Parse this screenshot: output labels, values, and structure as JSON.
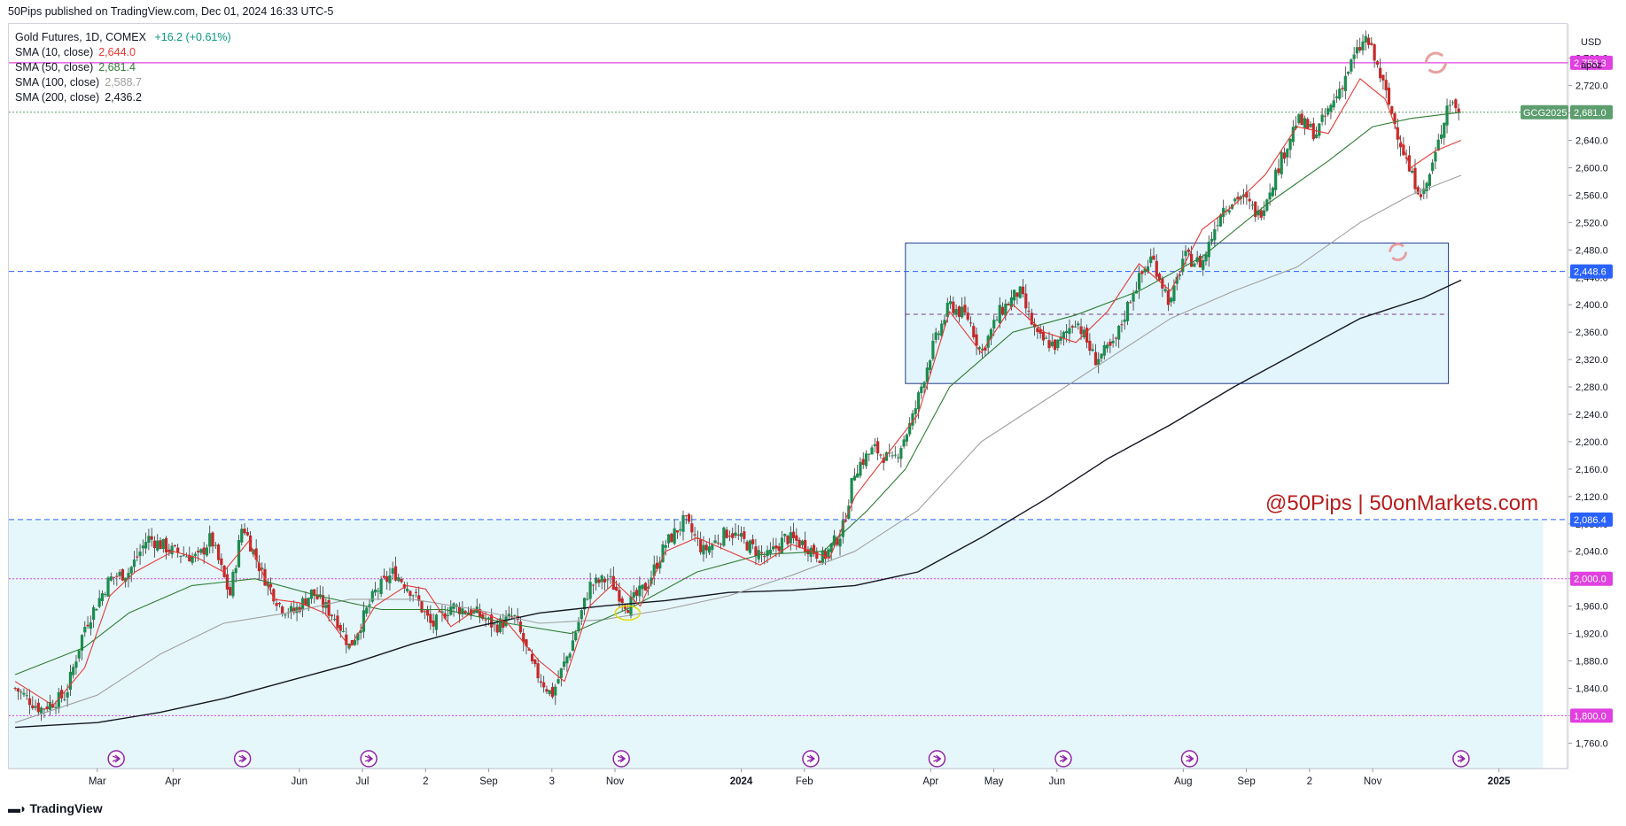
{
  "header": {
    "published": "50Pips published on TradingView.com, Dec 01, 2024 16:33 UTC-5"
  },
  "legend": {
    "symbol": "Gold Futures, 1D, COMEX",
    "change": "+16.2 (+0.61%)",
    "indicators": [
      {
        "name": "SMA (10, close)",
        "value": "2,644.0",
        "color": "#e53935"
      },
      {
        "name": "SMA (50, close)",
        "value": "2,681.4",
        "color": "#2e7d32"
      },
      {
        "name": "SMA (100, close)",
        "value": "2,588.7",
        "color": "#9e9e9e"
      },
      {
        "name": "SMA (200, close)",
        "value": "2,436.2",
        "color": "#131722"
      }
    ]
  },
  "price_axis": {
    "currency": "USD",
    "mode": "apoz"
  },
  "watermark": "@50Pips | 50onMarkets.com",
  "footer": {
    "brand": "TradingView",
    "logo_icon": "tradingview-logo-icon"
  },
  "chart_data": {
    "type": "candlestick",
    "y_ticks": [
      1760,
      1800,
      1840,
      1880,
      1920,
      1960,
      2000,
      2040,
      2080,
      2120,
      2160,
      2200,
      2240,
      2280,
      2320,
      2360,
      2400,
      2440,
      2480,
      2520,
      2560,
      2600,
      2640,
      2680,
      2720,
      2760
    ],
    "y_tick_labels": [
      "1,760.0",
      "1,800.0",
      "1,840.0",
      "1,880.0",
      "1,920.0",
      "1,960.0",
      "2,000.0",
      "2,040.0",
      "2,080.0",
      "2,120.0",
      "2,160.0",
      "2,200.0",
      "2,240.0",
      "2,280.0",
      "2,320.0",
      "2,360.0",
      "2,400.0",
      "2,440.0",
      "2,480.0",
      "2,520.0",
      "2,560.0",
      "2,600.0",
      "2,640.0",
      "2,680.0",
      "2,720.0",
      "2,760.0"
    ],
    "ylim": [
      1723,
      2810
    ],
    "x_ticks": [
      {
        "label": "Mar",
        "t": 1.0
      },
      {
        "label": "Apr",
        "t": 2.2
      },
      {
        "label": "Jun",
        "t": 4.2
      },
      {
        "label": "Jul",
        "t": 5.2
      },
      {
        "label": "2",
        "t": 6.2
      },
      {
        "label": "Sep",
        "t": 7.2
      },
      {
        "label": "3",
        "t": 8.2
      },
      {
        "label": "Nov",
        "t": 9.2
      },
      {
        "label": "2024",
        "t": 11.2
      },
      {
        "label": "Feb",
        "t": 12.2
      },
      {
        "label": "Apr",
        "t": 14.2
      },
      {
        "label": "May",
        "t": 15.2
      },
      {
        "label": "Jun",
        "t": 16.2
      },
      {
        "label": "Aug",
        "t": 18.2
      },
      {
        "label": "Sep",
        "t": 19.2
      },
      {
        "label": "2",
        "t": 20.2
      },
      {
        "label": "Nov",
        "t": 21.2
      },
      {
        "label": "2025",
        "t": 23.2
      }
    ],
    "price_tags": [
      {
        "label": "2,753.3",
        "value": 2753.3,
        "color": "#e040e0",
        "line": "solid"
      },
      {
        "label": "2,681.0",
        "value": 2681.0,
        "color": "#5d9e6f",
        "line": "dotted",
        "symbol": "GCG2025"
      },
      {
        "label": "2,448.6",
        "value": 2448.6,
        "color": "#2962ff",
        "line": "dashed"
      },
      {
        "label": "2,086.4",
        "value": 2086.4,
        "color": "#2962ff",
        "line": "dashed"
      },
      {
        "label": "2,000.0",
        "value": 2000.0,
        "color": "#e040e0",
        "line": "dotted"
      },
      {
        "label": "1,800.0",
        "value": 1800.0,
        "color": "#e040e0",
        "line": "dotted"
      }
    ],
    "zones": [
      {
        "from_t": -0.4,
        "to_t": 23.9,
        "low": 1723,
        "high": 2086.4
      },
      {
        "from_t": 13.8,
        "to_t": 22.4,
        "low": 2285,
        "high": 2490,
        "mid": 2386,
        "top_dash": 2448.6
      }
    ],
    "sma10": [
      [
        -0.3,
        1850
      ],
      [
        0.3,
        1815
      ],
      [
        0.8,
        1870
      ],
      [
        1.2,
        1975
      ],
      [
        1.6,
        2010
      ],
      [
        2.2,
        2040
      ],
      [
        2.6,
        2030
      ],
      [
        3.0,
        2010
      ],
      [
        3.4,
        2055
      ],
      [
        3.8,
        1970
      ],
      [
        4.2,
        1965
      ],
      [
        4.6,
        1950
      ],
      [
        5.0,
        1900
      ],
      [
        5.4,
        1960
      ],
      [
        5.9,
        1990
      ],
      [
        6.2,
        1985
      ],
      [
        6.6,
        1930
      ],
      [
        7.0,
        1955
      ],
      [
        7.5,
        1935
      ],
      [
        8.0,
        1880
      ],
      [
        8.4,
        1850
      ],
      [
        8.8,
        1960
      ],
      [
        9.2,
        1995
      ],
      [
        9.6,
        1960
      ],
      [
        10.0,
        2040
      ],
      [
        10.5,
        2060
      ],
      [
        11.0,
        2040
      ],
      [
        11.5,
        2020
      ],
      [
        12.0,
        2050
      ],
      [
        12.6,
        2030
      ],
      [
        13.0,
        2120
      ],
      [
        13.5,
        2180
      ],
      [
        14.0,
        2240
      ],
      [
        14.5,
        2390
      ],
      [
        15.0,
        2330
      ],
      [
        15.5,
        2400
      ],
      [
        16.0,
        2360
      ],
      [
        16.5,
        2345
      ],
      [
        17.0,
        2390
      ],
      [
        17.5,
        2460
      ],
      [
        18.0,
        2420
      ],
      [
        18.5,
        2510
      ],
      [
        19.0,
        2545
      ],
      [
        19.5,
        2590
      ],
      [
        20.0,
        2660
      ],
      [
        20.5,
        2650
      ],
      [
        21.0,
        2730
      ],
      [
        21.4,
        2700
      ],
      [
        21.8,
        2600
      ],
      [
        22.2,
        2625
      ],
      [
        22.6,
        2640
      ]
    ],
    "sma50": [
      [
        -0.3,
        1860
      ],
      [
        0.8,
        1900
      ],
      [
        1.5,
        1950
      ],
      [
        2.5,
        1990
      ],
      [
        3.5,
        2000
      ],
      [
        4.5,
        1975
      ],
      [
        5.5,
        1955
      ],
      [
        6.5,
        1955
      ],
      [
        7.5,
        1935
      ],
      [
        8.5,
        1920
      ],
      [
        9.5,
        1960
      ],
      [
        10.5,
        2010
      ],
      [
        11.5,
        2035
      ],
      [
        12.5,
        2040
      ],
      [
        13.2,
        2100
      ],
      [
        13.8,
        2160
      ],
      [
        14.5,
        2280
      ],
      [
        15.5,
        2360
      ],
      [
        16.5,
        2385
      ],
      [
        17.5,
        2420
      ],
      [
        18.5,
        2470
      ],
      [
        19.5,
        2545
      ],
      [
        20.5,
        2610
      ],
      [
        21.2,
        2660
      ],
      [
        21.8,
        2672
      ],
      [
        22.6,
        2681
      ]
    ],
    "sma100": [
      [
        -0.3,
        1790
      ],
      [
        1.0,
        1830
      ],
      [
        2.0,
        1890
      ],
      [
        3.0,
        1935
      ],
      [
        4.0,
        1950
      ],
      [
        5.0,
        1970
      ],
      [
        6.0,
        1970
      ],
      [
        7.0,
        1955
      ],
      [
        8.0,
        1935
      ],
      [
        9.0,
        1940
      ],
      [
        10.0,
        1955
      ],
      [
        11.0,
        1975
      ],
      [
        12.0,
        2005
      ],
      [
        13.0,
        2040
      ],
      [
        14.0,
        2100
      ],
      [
        15.0,
        2200
      ],
      [
        16.0,
        2260
      ],
      [
        17.0,
        2320
      ],
      [
        18.0,
        2380
      ],
      [
        19.0,
        2420
      ],
      [
        20.0,
        2455
      ],
      [
        21.0,
        2520
      ],
      [
        21.8,
        2560
      ],
      [
        22.6,
        2589
      ]
    ],
    "sma200": [
      [
        -0.3,
        1783
      ],
      [
        1.0,
        1790
      ],
      [
        2.0,
        1805
      ],
      [
        3.0,
        1825
      ],
      [
        4.0,
        1850
      ],
      [
        5.0,
        1875
      ],
      [
        6.0,
        1905
      ],
      [
        7.0,
        1930
      ],
      [
        8.0,
        1950
      ],
      [
        9.0,
        1960
      ],
      [
        10.0,
        1968
      ],
      [
        11.0,
        1980
      ],
      [
        12.0,
        1983
      ],
      [
        13.0,
        1990
      ],
      [
        14.0,
        2010
      ],
      [
        15.0,
        2060
      ],
      [
        16.0,
        2115
      ],
      [
        17.0,
        2175
      ],
      [
        18.0,
        2225
      ],
      [
        19.0,
        2280
      ],
      [
        20.0,
        2330
      ],
      [
        21.0,
        2380
      ],
      [
        22.0,
        2410
      ],
      [
        22.6,
        2436
      ]
    ],
    "close_path": [
      [
        -0.3,
        1840
      ],
      [
        0.1,
        1810
      ],
      [
        0.5,
        1830
      ],
      [
        0.8,
        1930
      ],
      [
        1.2,
        2000
      ],
      [
        1.5,
        2010
      ],
      [
        1.8,
        2060
      ],
      [
        2.2,
        2040
      ],
      [
        2.6,
        2030
      ],
      [
        2.8,
        2060
      ],
      [
        3.1,
        1975
      ],
      [
        3.3,
        2080
      ],
      [
        3.6,
        2010
      ],
      [
        3.9,
        1960
      ],
      [
        4.1,
        1950
      ],
      [
        4.4,
        1980
      ],
      [
        4.8,
        1940
      ],
      [
        5.0,
        1900
      ],
      [
        5.4,
        1980
      ],
      [
        5.7,
        2010
      ],
      [
        6.0,
        1980
      ],
      [
        6.3,
        1930
      ],
      [
        6.6,
        1960
      ],
      [
        7.0,
        1950
      ],
      [
        7.3,
        1930
      ],
      [
        7.6,
        1945
      ],
      [
        7.9,
        1870
      ],
      [
        8.2,
        1830
      ],
      [
        8.5,
        1900
      ],
      [
        8.8,
        1990
      ],
      [
        9.1,
        2000
      ],
      [
        9.4,
        1960
      ],
      [
        9.7,
        1990
      ],
      [
        10.0,
        2050
      ],
      [
        10.3,
        2085
      ],
      [
        10.6,
        2040
      ],
      [
        11.0,
        2070
      ],
      [
        11.3,
        2050
      ],
      [
        11.6,
        2030
      ],
      [
        11.9,
        2060
      ],
      [
        12.2,
        2050
      ],
      [
        12.5,
        2030
      ],
      [
        12.8,
        2070
      ],
      [
        13.0,
        2160
      ],
      [
        13.3,
        2190
      ],
      [
        13.6,
        2170
      ],
      [
        13.9,
        2230
      ],
      [
        14.2,
        2330
      ],
      [
        14.5,
        2400
      ],
      [
        14.8,
        2380
      ],
      [
        15.0,
        2330
      ],
      [
        15.3,
        2390
      ],
      [
        15.6,
        2420
      ],
      [
        15.9,
        2350
      ],
      [
        16.2,
        2340
      ],
      [
        16.5,
        2380
      ],
      [
        16.8,
        2320
      ],
      [
        17.1,
        2340
      ],
      [
        17.4,
        2420
      ],
      [
        17.7,
        2470
      ],
      [
        18.0,
        2400
      ],
      [
        18.2,
        2470
      ],
      [
        18.5,
        2460
      ],
      [
        18.8,
        2540
      ],
      [
        19.1,
        2560
      ],
      [
        19.4,
        2530
      ],
      [
        19.7,
        2600
      ],
      [
        20.0,
        2670
      ],
      [
        20.3,
        2650
      ],
      [
        20.6,
        2700
      ],
      [
        20.9,
        2760
      ],
      [
        21.1,
        2790
      ],
      [
        21.3,
        2740
      ],
      [
        21.5,
        2680
      ],
      [
        21.8,
        2590
      ],
      [
        22.0,
        2560
      ],
      [
        22.2,
        2620
      ],
      [
        22.4,
        2700
      ],
      [
        22.6,
        2681
      ]
    ],
    "marks": {
      "event_icon": "arrow-circle-icon",
      "event_t": [
        1.3,
        3.3,
        5.3,
        9.3,
        12.3,
        14.3,
        16.3,
        18.3,
        22.6
      ],
      "reset_icon": "refresh-icon",
      "highlight_t": 9.4
    }
  }
}
